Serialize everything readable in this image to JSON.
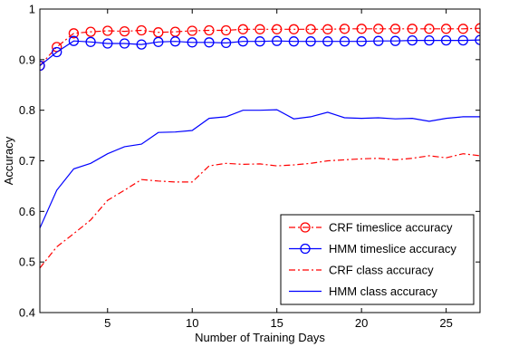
{
  "chart_data": {
    "type": "line",
    "title": "",
    "xlabel": "Number of Training Days",
    "ylabel": "Accuracy",
    "xlim": [
      1,
      27
    ],
    "ylim": [
      0.4,
      1.0
    ],
    "xticks": [
      5,
      10,
      15,
      20,
      25
    ],
    "yticks": [
      0.4,
      0.5,
      0.6,
      0.7,
      0.8,
      0.9,
      1.0
    ],
    "ytick_labels": [
      "0.4",
      "0.5",
      "0.6",
      "0.7",
      "0.8",
      "0.9",
      "1"
    ],
    "grid": false,
    "legend_position": "bottom-right",
    "x": [
      1,
      2,
      3,
      4,
      5,
      6,
      7,
      8,
      9,
      10,
      11,
      12,
      13,
      14,
      15,
      16,
      17,
      18,
      19,
      20,
      21,
      22,
      23,
      24,
      25,
      26,
      27
    ],
    "series": [
      {
        "name": "CRF timeslice accuracy",
        "color": "#ff0000",
        "line": "dashdot",
        "marker": "circle",
        "values": [
          0.888,
          0.925,
          0.952,
          0.955,
          0.957,
          0.956,
          0.958,
          0.954,
          0.955,
          0.957,
          0.958,
          0.958,
          0.96,
          0.96,
          0.96,
          0.96,
          0.96,
          0.96,
          0.961,
          0.961,
          0.961,
          0.961,
          0.961,
          0.961,
          0.961,
          0.961,
          0.962
        ]
      },
      {
        "name": "HMM timeslice accuracy",
        "color": "#0000ff",
        "line": "solid",
        "marker": "circle",
        "values": [
          0.888,
          0.915,
          0.937,
          0.935,
          0.932,
          0.932,
          0.93,
          0.935,
          0.936,
          0.934,
          0.934,
          0.933,
          0.936,
          0.936,
          0.937,
          0.936,
          0.936,
          0.936,
          0.936,
          0.936,
          0.937,
          0.937,
          0.938,
          0.938,
          0.938,
          0.938,
          0.939
        ]
      },
      {
        "name": "CRF class accuracy",
        "color": "#ff0000",
        "line": "dashdot",
        "marker": "none",
        "values": [
          0.488,
          0.53,
          0.556,
          0.583,
          0.622,
          0.642,
          0.663,
          0.66,
          0.658,
          0.658,
          0.69,
          0.695,
          0.693,
          0.694,
          0.69,
          0.692,
          0.695,
          0.7,
          0.702,
          0.704,
          0.705,
          0.702,
          0.705,
          0.71,
          0.706,
          0.714,
          0.71
        ]
      },
      {
        "name": "HMM class accuracy",
        "color": "#0000ff",
        "line": "solid",
        "marker": "none",
        "values": [
          0.567,
          0.642,
          0.684,
          0.695,
          0.714,
          0.728,
          0.733,
          0.756,
          0.757,
          0.76,
          0.784,
          0.787,
          0.8,
          0.8,
          0.801,
          0.783,
          0.787,
          0.796,
          0.785,
          0.784,
          0.785,
          0.783,
          0.784,
          0.778,
          0.784,
          0.787,
          0.787
        ]
      }
    ]
  }
}
